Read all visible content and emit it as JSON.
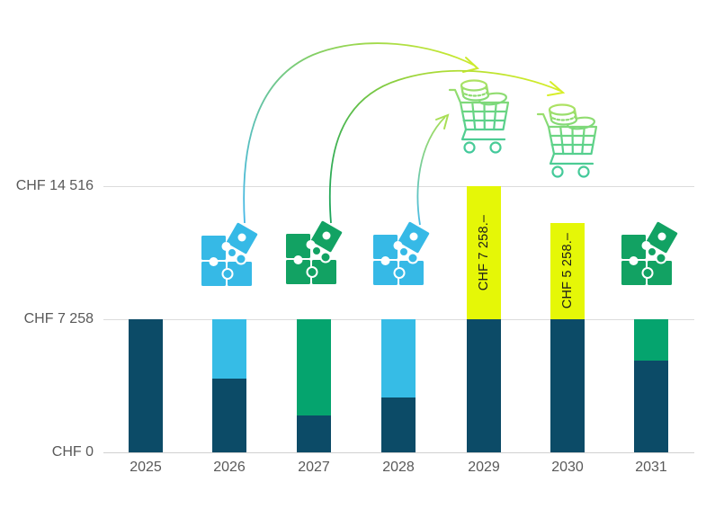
{
  "chart_data": {
    "type": "bar",
    "stacked": true,
    "title": "",
    "categories": [
      "2025",
      "2026",
      "2027",
      "2028",
      "2029",
      "2030",
      "2031"
    ],
    "series": [
      {
        "name": "base-navy",
        "color": "#0c4b67",
        "values": [
          7258,
          4000,
          2000,
          3000,
          7258,
          7258,
          5000
        ]
      },
      {
        "name": "topup-blue",
        "color": "#36bce6",
        "values": [
          0,
          3258,
          0,
          4258,
          0,
          0,
          0
        ]
      },
      {
        "name": "topup-green",
        "color": "#05a46e",
        "values": [
          0,
          0,
          5258,
          0,
          0,
          0,
          2258
        ]
      },
      {
        "name": "carryover-yellow",
        "color": "#e5f707",
        "values": [
          0,
          0,
          0,
          0,
          7258,
          5258,
          0
        ]
      }
    ],
    "bar_value_labels": [
      {
        "category": "2029",
        "series": "carryover-yellow",
        "text": "CHF 7 258.–"
      },
      {
        "category": "2030",
        "series": "carryover-yellow",
        "text": "CHF 5 258.–"
      }
    ],
    "ylim": [
      0,
      14516
    ],
    "gridlines": [
      0,
      7258,
      14516
    ],
    "legend": "none"
  },
  "axis": {
    "y_ticks": [
      {
        "label": "CHF 0",
        "value": 0
      },
      {
        "label": "CHF 7 258",
        "value": 7258
      },
      {
        "label": "CHF 14 516",
        "value": 14516
      }
    ],
    "x_labels": [
      "2025",
      "2026",
      "2027",
      "2028",
      "2029",
      "2030",
      "2031"
    ],
    "tick_color": "#595959",
    "grid_color": "#dcdcdc"
  },
  "decorations": {
    "puzzle_groups": [
      {
        "year": "2026",
        "color": "#36b9e6",
        "icon": "puzzle-pieces-icon"
      },
      {
        "year": "2027",
        "color": "#12a263",
        "icon": "puzzle-pieces-icon"
      },
      {
        "year": "2028",
        "color": "#36b9e6",
        "icon": "puzzle-pieces-icon"
      },
      {
        "year": "2031",
        "color": "#12a263",
        "icon": "puzzle-pieces-icon"
      }
    ],
    "carts": [
      {
        "icon": "shopping-cart-with-coins-icon"
      },
      {
        "icon": "shopping-cart-with-coins-icon"
      }
    ],
    "cart_gradient": [
      "#b5e45f",
      "#62d387",
      "#3fc89c"
    ],
    "arrows": [
      {
        "from": "puzzle-2026",
        "to": "cart-1",
        "gradient": [
          "#45b8e8",
          "#84cf62",
          "#cdea2c"
        ]
      },
      {
        "from": "puzzle-2027",
        "to": "cart-2",
        "gradient": [
          "#1aa45c",
          "#9fd63a",
          "#d7ee28"
        ]
      },
      {
        "from": "puzzle-2028",
        "to": "cart-1",
        "gradient": [
          "#49bce8",
          "#7ecf92",
          "#a9df55"
        ]
      }
    ],
    "bar_label_text_color": "#1c1c1c"
  }
}
